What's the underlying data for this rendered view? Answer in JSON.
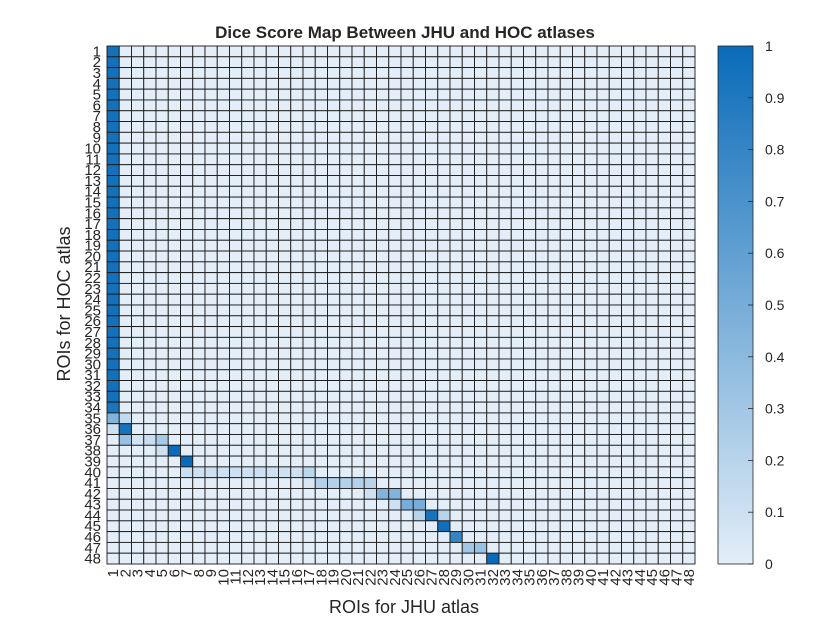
{
  "chart_data": {
    "type": "heatmap",
    "title": "Dice Score Map Between JHU and HOC atlases",
    "xlabel": "ROIs for JHU atlas",
    "ylabel": "ROIs for HOC atlas",
    "x_categories": [
      "1",
      "2",
      "3",
      "4",
      "5",
      "6",
      "7",
      "8",
      "9",
      "10",
      "11",
      "12",
      "13",
      "14",
      "15",
      "16",
      "17",
      "18",
      "19",
      "20",
      "21",
      "22",
      "23",
      "24",
      "25",
      "26",
      "27",
      "28",
      "29",
      "30",
      "31",
      "32",
      "33",
      "34",
      "35",
      "36",
      "37",
      "38",
      "39",
      "40",
      "41",
      "42",
      "43",
      "44",
      "45",
      "46",
      "47",
      "48"
    ],
    "y_categories": [
      "1",
      "2",
      "3",
      "4",
      "5",
      "6",
      "7",
      "8",
      "9",
      "10",
      "11",
      "12",
      "13",
      "14",
      "15",
      "16",
      "17",
      "18",
      "19",
      "20",
      "21",
      "22",
      "23",
      "24",
      "25",
      "26",
      "27",
      "28",
      "29",
      "30",
      "31",
      "32",
      "33",
      "34",
      "35",
      "36",
      "37",
      "38",
      "39",
      "40",
      "41",
      "42",
      "43",
      "44",
      "45",
      "46",
      "47",
      "48"
    ],
    "value_range": [
      0,
      1
    ],
    "colormap": {
      "low": "#e3eef8",
      "high": "#0a6bb8"
    },
    "grid": true,
    "colorbar": {
      "position": "right",
      "ticks": [
        0,
        0.1,
        0.2,
        0.3,
        0.4,
        0.5,
        0.6,
        0.7,
        0.8,
        0.9,
        1
      ]
    },
    "default_value": 0,
    "cells": [
      {
        "row": 1,
        "col": 1,
        "value": 0.96
      },
      {
        "row": 2,
        "col": 1,
        "value": 0.96
      },
      {
        "row": 3,
        "col": 1,
        "value": 0.96
      },
      {
        "row": 4,
        "col": 1,
        "value": 0.96
      },
      {
        "row": 5,
        "col": 1,
        "value": 0.96
      },
      {
        "row": 6,
        "col": 1,
        "value": 0.96
      },
      {
        "row": 7,
        "col": 1,
        "value": 0.96
      },
      {
        "row": 8,
        "col": 1,
        "value": 0.96
      },
      {
        "row": 9,
        "col": 1,
        "value": 0.96
      },
      {
        "row": 10,
        "col": 1,
        "value": 0.96
      },
      {
        "row": 11,
        "col": 1,
        "value": 0.96
      },
      {
        "row": 12,
        "col": 1,
        "value": 0.96
      },
      {
        "row": 13,
        "col": 1,
        "value": 0.96
      },
      {
        "row": 14,
        "col": 1,
        "value": 0.96
      },
      {
        "row": 15,
        "col": 1,
        "value": 0.96
      },
      {
        "row": 16,
        "col": 1,
        "value": 0.96
      },
      {
        "row": 17,
        "col": 1,
        "value": 0.96
      },
      {
        "row": 18,
        "col": 1,
        "value": 0.96
      },
      {
        "row": 19,
        "col": 1,
        "value": 0.96
      },
      {
        "row": 20,
        "col": 1,
        "value": 0.96
      },
      {
        "row": 21,
        "col": 1,
        "value": 0.96
      },
      {
        "row": 22,
        "col": 1,
        "value": 0.96
      },
      {
        "row": 23,
        "col": 1,
        "value": 0.96
      },
      {
        "row": 24,
        "col": 1,
        "value": 0.96
      },
      {
        "row": 25,
        "col": 1,
        "value": 0.96
      },
      {
        "row": 26,
        "col": 1,
        "value": 0.96
      },
      {
        "row": 27,
        "col": 1,
        "value": 0.96
      },
      {
        "row": 28,
        "col": 1,
        "value": 0.96
      },
      {
        "row": 29,
        "col": 1,
        "value": 0.96
      },
      {
        "row": 30,
        "col": 1,
        "value": 0.96
      },
      {
        "row": 31,
        "col": 1,
        "value": 0.96
      },
      {
        "row": 32,
        "col": 1,
        "value": 0.96
      },
      {
        "row": 33,
        "col": 1,
        "value": 0.96
      },
      {
        "row": 34,
        "col": 1,
        "value": 0.92
      },
      {
        "row": 35,
        "col": 1,
        "value": 0.45
      },
      {
        "row": 35,
        "col": 2,
        "value": 0.15
      },
      {
        "row": 36,
        "col": 1,
        "value": 0.1
      },
      {
        "row": 36,
        "col": 2,
        "value": 0.95
      },
      {
        "row": 37,
        "col": 2,
        "value": 0.35
      },
      {
        "row": 37,
        "col": 3,
        "value": 0.08
      },
      {
        "row": 37,
        "col": 4,
        "value": 0.12
      },
      {
        "row": 37,
        "col": 5,
        "value": 0.28
      },
      {
        "row": 38,
        "col": 5,
        "value": 0.1
      },
      {
        "row": 38,
        "col": 6,
        "value": 1.0
      },
      {
        "row": 39,
        "col": 7,
        "value": 1.0
      },
      {
        "row": 40,
        "col": 7,
        "value": 0.12
      },
      {
        "row": 40,
        "col": 8,
        "value": 0.1
      },
      {
        "row": 40,
        "col": 9,
        "value": 0.1
      },
      {
        "row": 40,
        "col": 10,
        "value": 0.1
      },
      {
        "row": 40,
        "col": 11,
        "value": 0.1
      },
      {
        "row": 40,
        "col": 12,
        "value": 0.1
      },
      {
        "row": 40,
        "col": 13,
        "value": 0.1
      },
      {
        "row": 40,
        "col": 14,
        "value": 0.1
      },
      {
        "row": 40,
        "col": 15,
        "value": 0.1
      },
      {
        "row": 40,
        "col": 16,
        "value": 0.1
      },
      {
        "row": 40,
        "col": 17,
        "value": 0.18
      },
      {
        "row": 41,
        "col": 17,
        "value": 0.05
      },
      {
        "row": 41,
        "col": 18,
        "value": 0.22
      },
      {
        "row": 41,
        "col": 19,
        "value": 0.22
      },
      {
        "row": 41,
        "col": 20,
        "value": 0.22
      },
      {
        "row": 41,
        "col": 21,
        "value": 0.22
      },
      {
        "row": 41,
        "col": 22,
        "value": 0.2
      },
      {
        "row": 42,
        "col": 22,
        "value": 0.1
      },
      {
        "row": 42,
        "col": 23,
        "value": 0.45
      },
      {
        "row": 42,
        "col": 24,
        "value": 0.45
      },
      {
        "row": 43,
        "col": 24,
        "value": 0.1
      },
      {
        "row": 43,
        "col": 25,
        "value": 0.5
      },
      {
        "row": 43,
        "col": 26,
        "value": 0.5
      },
      {
        "row": 44,
        "col": 26,
        "value": 0.2
      },
      {
        "row": 44,
        "col": 27,
        "value": 0.95
      },
      {
        "row": 44,
        "col": 28,
        "value": 0.2
      },
      {
        "row": 45,
        "col": 28,
        "value": 0.97
      },
      {
        "row": 46,
        "col": 29,
        "value": 0.8
      },
      {
        "row": 47,
        "col": 30,
        "value": 0.3
      },
      {
        "row": 47,
        "col": 31,
        "value": 0.35
      },
      {
        "row": 48,
        "col": 32,
        "value": 1.0
      }
    ]
  }
}
